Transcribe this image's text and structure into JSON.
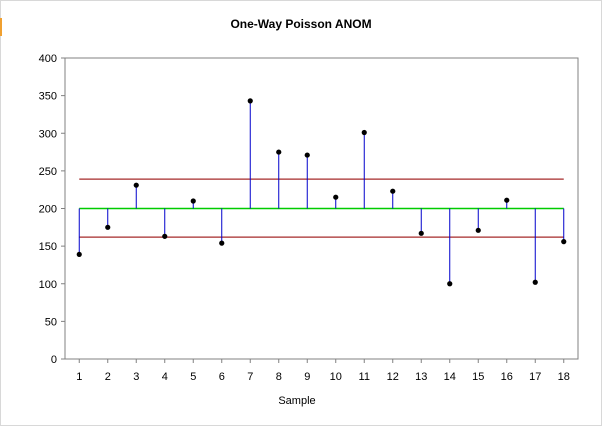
{
  "chart_data": {
    "type": "line",
    "title": "One-Way Poisson ANOM",
    "xlabel": "Sample",
    "ylabel": "",
    "ylim": [
      0,
      400
    ],
    "yticks": [
      0,
      50,
      100,
      150,
      200,
      250,
      300,
      350,
      400
    ],
    "x": [
      1,
      2,
      3,
      4,
      5,
      6,
      7,
      8,
      9,
      10,
      11,
      12,
      13,
      14,
      15,
      16,
      17,
      18
    ],
    "values": [
      139,
      175,
      231,
      163,
      210,
      154,
      343,
      275,
      271,
      215,
      301,
      223,
      167,
      100,
      171,
      211,
      102,
      156
    ],
    "center_line": 200,
    "upper_decision_limit": 239,
    "lower_decision_limit": 162,
    "grid": false,
    "legend": "none",
    "colors": {
      "center_line": "#00cc00",
      "decision_limits": "#a52a2a",
      "stems": "#0000cc",
      "points": "#000000",
      "plot_border": "#808080"
    }
  }
}
